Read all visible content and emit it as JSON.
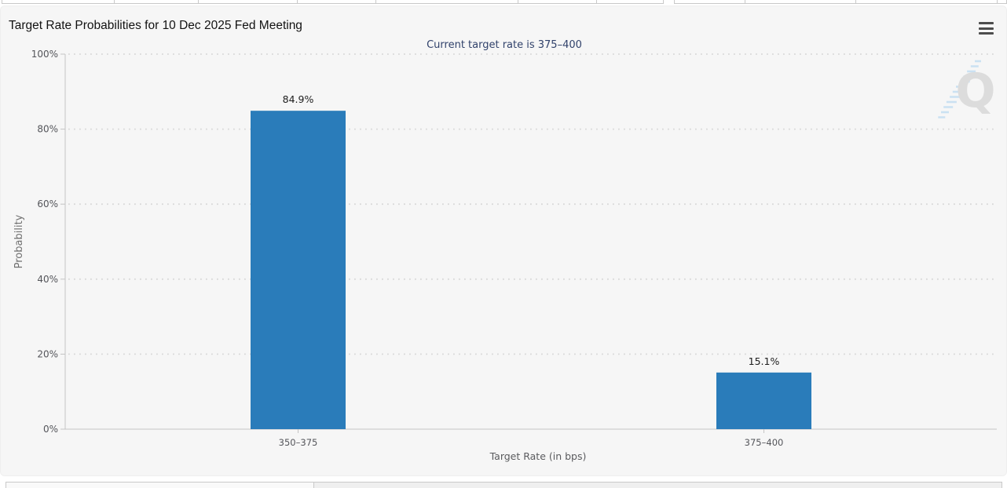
{
  "header": {
    "title": "Target Rate Probabilities for 10 Dec 2025 Fed Meeting",
    "menu_icon": "hamburger-menu-icon"
  },
  "watermark": {
    "letter": "Q"
  },
  "chart_data": {
    "type": "bar",
    "title": "Target Rate Probabilities for 10 Dec 2025 Fed Meeting",
    "subtitle": "Current target rate is 375–400",
    "categories": [
      "350–375",
      "375–400"
    ],
    "values": [
      84.9,
      15.1
    ],
    "value_labels": [
      "84.9%",
      "15.1%"
    ],
    "xlabel": "Target Rate (in bps)",
    "ylabel": "Probability",
    "ylim": [
      0,
      100
    ],
    "yticks": [
      0,
      20,
      40,
      60,
      80,
      100
    ],
    "ytick_labels": [
      "0%",
      "20%",
      "40%",
      "60%",
      "80%",
      "100%"
    ],
    "grid": "dotted-horizontal",
    "legend_position": "none",
    "bar_color": "#2a7cba"
  },
  "colors": {
    "panel_bg": "#f6f6f6",
    "axis_line": "#c4c4c4",
    "gridline": "#d8d8d8",
    "tick_text": "#54555a",
    "axis_title_text": "#5a5b5e",
    "ylabel_text": "#707070",
    "value_label_text": "#1c1c1c",
    "subtitle_text": "#31426b",
    "title_text": "#121212",
    "watermark_q": "#dcdcdc",
    "watermark_stripes": "#c7dff2",
    "bar": "#2a7cba"
  }
}
